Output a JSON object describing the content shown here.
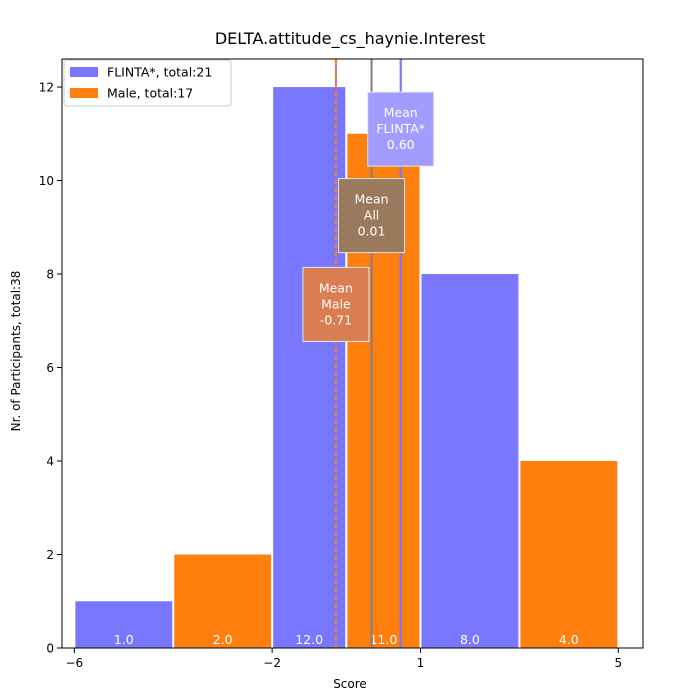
{
  "chart_data": {
    "type": "bar",
    "title": "DELTA.attitude_cs_haynie.Interest",
    "xlabel": "Score",
    "ylabel": "Nr. of Participants, total:38",
    "xlim": [
      -6.25,
      5.5
    ],
    "ylim": [
      0,
      12.6
    ],
    "x_ticks": [
      -6,
      -2,
      1,
      5
    ],
    "y_ticks": [
      0,
      2,
      4,
      6,
      8,
      10,
      12
    ],
    "grid": false,
    "legend_position": "top-left",
    "series": [
      {
        "name": "FLINTA*, total:21",
        "color": "#7a77ff",
        "bars": [
          {
            "x0": -6,
            "x1": -4,
            "value": 1,
            "label": "1.0"
          },
          {
            "x0": -2,
            "x1": -0.5,
            "value": 12,
            "label": "12.0"
          },
          {
            "x0": 1,
            "x1": 3,
            "value": 8,
            "label": "8.0"
          }
        ]
      },
      {
        "name": "Male, total:17",
        "color": "#ff7f0e",
        "bars": [
          {
            "x0": -4,
            "x1": -2,
            "value": 2,
            "label": "2.0"
          },
          {
            "x0": -0.5,
            "x1": 1,
            "value": 11,
            "label": "11.0"
          },
          {
            "x0": 3,
            "x1": 5,
            "value": 4,
            "label": "4.0"
          }
        ]
      }
    ],
    "means": [
      {
        "group": "FLINTA*",
        "value": 0.6,
        "label_lines": [
          "Mean",
          "FLINTA*",
          "0.60"
        ],
        "line_color": "#7a77ff",
        "line_color2": "#7a77ff",
        "box_color": "#a09dff",
        "box_y_center": 11.1
      },
      {
        "group": "All",
        "value": 0.01,
        "label_lines": [
          "Mean",
          "All",
          "0.01"
        ],
        "line_color": "#808080",
        "line_color2": "#808080",
        "box_color": "#9a7a5c",
        "box_y_center": 9.25
      },
      {
        "group": "Male",
        "value": -0.71,
        "label_lines": [
          "Mean",
          "Male",
          "-0.71"
        ],
        "line_color": "#ff7f0e",
        "line_color2": "#7a77ff",
        "box_color": "#d97d52",
        "box_y_center": 7.35
      }
    ]
  }
}
